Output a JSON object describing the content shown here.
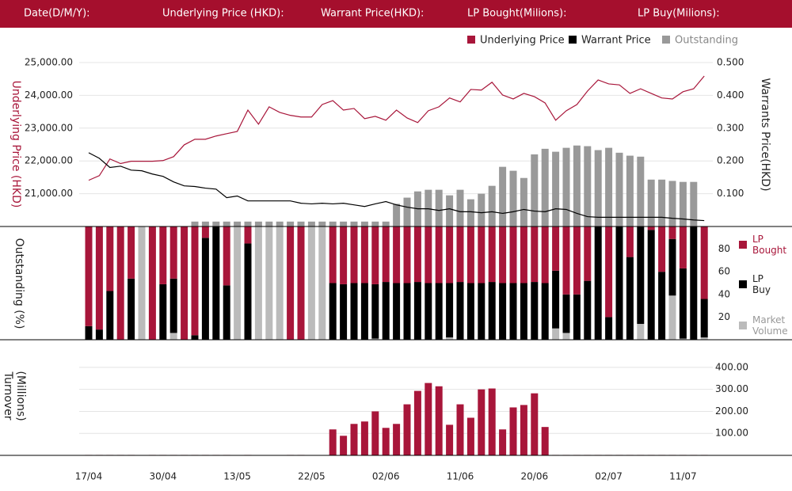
{
  "header": {
    "labels": [
      "Date(D/M/Y):",
      "Underlying Price (HKD):",
      "Warrant  Price(HKD):",
      "LP Bought(Milions):",
      "LP Buy(Milions):"
    ]
  },
  "chart_data": [
    {
      "type": "line",
      "ylabel": "Underlying Price (HKD)",
      "y2label": "Warrants  Price(HKD)",
      "ylim": [
        20000,
        25000
      ],
      "yticks": [
        {
          "value": 21000,
          "label": "21,000.00"
        },
        {
          "value": 22000,
          "label": "22,000.00"
        },
        {
          "value": 23000,
          "label": "23,000.00"
        },
        {
          "value": 24000,
          "label": "24,000.00"
        },
        {
          "value": 25000,
          "label": "25,000.00"
        }
      ],
      "y2lim": [
        0,
        0.5
      ],
      "y2ticks": [
        {
          "value": 0.1,
          "label": "0.100"
        },
        {
          "value": 0.2,
          "label": "0.200"
        },
        {
          "value": 0.3,
          "label": "0.300"
        },
        {
          "value": 0.4,
          "label": "0.400"
        },
        {
          "value": 0.5,
          "label": "0.500"
        }
      ],
      "grid": true,
      "series": [
        {
          "name": "Underlying Price",
          "color": "#a8163a",
          "kind": "line",
          "values": [
            21410,
            21550,
            22060,
            21920,
            21990,
            21990,
            21990,
            22010,
            22130,
            22490,
            22660,
            22660,
            22760,
            22830,
            22900,
            23550,
            23120,
            23650,
            23480,
            23390,
            23340,
            23340,
            23720,
            23840,
            23550,
            23600,
            23290,
            23360,
            23240,
            23550,
            23310,
            23170,
            23530,
            23650,
            23920,
            23800,
            24180,
            24160,
            24400,
            24010,
            23890,
            24060,
            23960,
            23770,
            23240,
            23530,
            23720,
            24130,
            24470,
            24350,
            24320,
            24060,
            24200,
            24060,
            23920,
            23890,
            24110,
            24200,
            24590
          ]
        },
        {
          "name": "Warrant  Price",
          "color": "#000000",
          "kind": "line",
          "axis": "y2",
          "values": [
            0.225,
            0.208,
            0.18,
            0.184,
            0.172,
            0.17,
            0.16,
            0.153,
            0.136,
            0.124,
            0.122,
            0.117,
            0.114,
            0.088,
            0.093,
            0.078,
            0.078,
            0.078,
            0.078,
            0.078,
            0.071,
            0.069,
            0.071,
            0.069,
            0.071,
            0.066,
            0.061,
            0.069,
            0.076,
            0.066,
            0.059,
            0.054,
            0.054,
            0.049,
            0.054,
            0.045,
            0.045,
            0.042,
            0.045,
            0.04,
            0.045,
            0.052,
            0.047,
            0.045,
            0.054,
            0.052,
            0.04,
            0.03,
            0.028,
            0.028,
            0.028,
            0.028,
            0.028,
            0.028,
            0.028,
            0.025,
            0.023,
            0.02,
            0.018
          ]
        },
        {
          "name": "Outstanding",
          "color": "#999999",
          "kind": "bar",
          "axis": "y2",
          "values": [
            0,
            0,
            0,
            0,
            0,
            0,
            0,
            0,
            0,
            0,
            0.015,
            0.015,
            0.015,
            0.015,
            0.015,
            0.015,
            0.015,
            0.015,
            0.015,
            0.015,
            0.015,
            0.015,
            0.015,
            0.015,
            0.015,
            0.015,
            0.015,
            0.015,
            0.015,
            0.069,
            0.088,
            0.107,
            0.112,
            0.112,
            0.095,
            0.112,
            0.083,
            0.1,
            0.124,
            0.182,
            0.17,
            0.148,
            0.22,
            0.237,
            0.228,
            0.24,
            0.247,
            0.245,
            0.233,
            0.24,
            0.225,
            0.216,
            0.213,
            0.143,
            0.143,
            0.139,
            0.136,
            0.136,
            0
          ]
        }
      ]
    },
    {
      "type": "stacked_bar",
      "ylabel": "Outstanding (%)",
      "ylim": [
        0,
        100
      ],
      "yticks": [
        20,
        40,
        60,
        80
      ],
      "series": [
        {
          "name": "Market Volume",
          "color": "#bbbbbb",
          "values": [
            0,
            0,
            0,
            0,
            0,
            100,
            0,
            0,
            6,
            0,
            0,
            0,
            0,
            0,
            100,
            0,
            100,
            100,
            100,
            0,
            0,
            100,
            100,
            0,
            0,
            0,
            0,
            1,
            0,
            0,
            0,
            0,
            0,
            0,
            2,
            0,
            0,
            0,
            0,
            0,
            0,
            0,
            0,
            0,
            10,
            6,
            0,
            0,
            0,
            0,
            0,
            0,
            14,
            0,
            0,
            39,
            1,
            0,
            2
          ]
        },
        {
          "name": "LP Buy",
          "color": "#000000",
          "values": [
            12,
            9,
            43,
            0,
            54,
            0,
            0,
            49,
            48,
            0,
            4,
            90,
            100,
            48,
            0,
            85,
            0,
            0,
            0,
            0,
            0,
            0,
            0,
            50,
            49,
            50,
            50,
            48,
            51,
            50,
            50,
            51,
            50,
            50,
            48,
            51,
            50,
            50,
            51,
            50,
            50,
            50,
            51,
            50,
            51,
            34,
            40,
            52,
            100,
            20,
            100,
            73,
            86,
            97,
            60,
            50,
            62,
            100,
            34
          ]
        },
        {
          "name": "LP Bought",
          "color": "#a8163a",
          "values": [
            88,
            91,
            57,
            100,
            46,
            0,
            100,
            51,
            46,
            100,
            96,
            10,
            0,
            52,
            0,
            15,
            0,
            0,
            0,
            100,
            100,
            0,
            0,
            50,
            51,
            50,
            50,
            51,
            49,
            50,
            50,
            49,
            50,
            50,
            50,
            49,
            50,
            50,
            49,
            50,
            50,
            50,
            49,
            50,
            39,
            60,
            60,
            48,
            0,
            80,
            0,
            27,
            0,
            3,
            40,
            11,
            37,
            0,
            64
          ]
        }
      ]
    },
    {
      "type": "bar",
      "ylabel": "Turnover (Millions)",
      "color": "#a8163a",
      "ylim": [
        0,
        450
      ],
      "yticks": [
        {
          "value": 100,
          "label": "100.00"
        },
        {
          "value": 200,
          "label": "200.00"
        },
        {
          "value": 300,
          "label": "300.00"
        },
        {
          "value": 400,
          "label": "400.00"
        }
      ],
      "grid": true,
      "categories": [
        "17/04",
        null,
        null,
        null,
        null,
        null,
        null,
        "30/04",
        null,
        null,
        null,
        null,
        null,
        null,
        "13/05",
        null,
        null,
        null,
        null,
        null,
        null,
        "22/05",
        null,
        null,
        null,
        null,
        null,
        null,
        "02/06",
        null,
        null,
        null,
        null,
        null,
        null,
        "11/06",
        null,
        null,
        null,
        null,
        null,
        null,
        "20/06",
        null,
        null,
        null,
        null,
        null,
        null,
        "02/07",
        null,
        null,
        null,
        null,
        null,
        null,
        "11/07",
        null,
        null
      ],
      "values": [
        2,
        2,
        2,
        2,
        2,
        0,
        2,
        2,
        2,
        2,
        2,
        2,
        2,
        2,
        0,
        2,
        0,
        0,
        0,
        2,
        2,
        0,
        0,
        118,
        89,
        143,
        154,
        200,
        125,
        143,
        232,
        293,
        329,
        314,
        139,
        232,
        171,
        300,
        304,
        118,
        218,
        229,
        282,
        129,
        2,
        2,
        2,
        2,
        2,
        2,
        2,
        2,
        2,
        2,
        2,
        2,
        2,
        2,
        2
      ]
    }
  ]
}
